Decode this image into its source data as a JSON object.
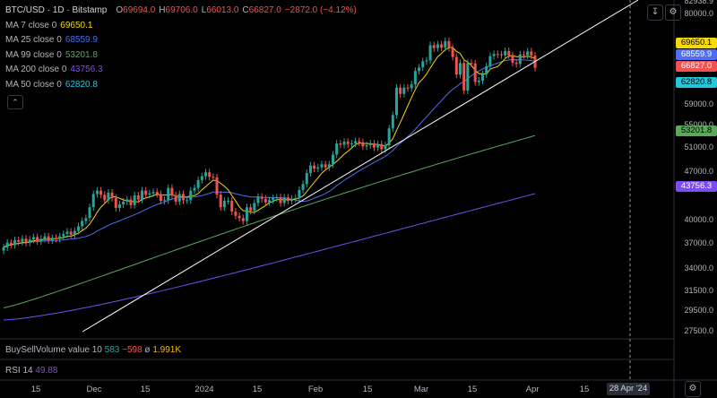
{
  "header": {
    "symbol": "BTC/USD · 1D · Bitstamp",
    "open_label": "O",
    "open": "69694.0",
    "high_label": "H",
    "high": "69706.0",
    "low_label": "L",
    "low": "66013.0",
    "close_label": "C",
    "close": "66827.0",
    "change": "−2872.0 (−4.12%)"
  },
  "indicators": [
    {
      "label": "MA 7 close 0",
      "value": "69650.1",
      "color": "#f5d90a"
    },
    {
      "label": "MA 25 close 0",
      "value": "68559.9",
      "color": "#4f6ef2"
    },
    {
      "label": "MA 99 close 0",
      "value": "53201.8",
      "color": "#5aa85a"
    },
    {
      "label": "MA 200 close 0",
      "value": "43756.3",
      "color": "#7b4cf0"
    },
    {
      "label": "MA 50 close 0",
      "value": "62820.8",
      "color": "#26c6da"
    }
  ],
  "collapse_icon": "chevron-up-icon",
  "price_axis": {
    "top_clipped": "82938.9",
    "ticks": [
      "80000.0",
      "59000.0",
      "55000.0",
      "51000.0",
      "47000.0",
      "40000.0",
      "37000.0",
      "34000.0",
      "31500.0",
      "29500.0",
      "27500.0"
    ],
    "price_tags": [
      {
        "value": "69650.1",
        "bg": "#f5d90a",
        "fg": "#000000"
      },
      {
        "value": "68559.9",
        "bg": "#4f6ef2",
        "fg": "#ffffff"
      },
      {
        "value": "66827.0",
        "bg": "#ef5350",
        "fg": "#ffffff"
      },
      {
        "value": "62820.8",
        "bg": "#26c6da",
        "fg": "#000000"
      },
      {
        "value": "53201.8",
        "bg": "#5aa85a",
        "fg": "#000000"
      },
      {
        "value": "43756.3",
        "bg": "#7b4cf0",
        "fg": "#ffffff"
      }
    ]
  },
  "time_axis": {
    "labels": [
      "15",
      "Dec",
      "15",
      "2024",
      "15",
      "Feb",
      "15",
      "Mar",
      "15",
      "Apr",
      "15"
    ],
    "cursor_date": "28 Apr '24"
  },
  "buysell_pane": {
    "label": "BuySellVolume value 10",
    "buy": "583",
    "sell": "−598",
    "symbol": "ø",
    "total": "1.991K"
  },
  "rsi_pane": {
    "label": "RSI 14",
    "value": "49.88"
  },
  "toolbar": {
    "download_icon": "download-icon",
    "settings_icon": "gear-icon"
  },
  "colors": {
    "up": "#26a69a",
    "down": "#ef5350",
    "trendline": "#ffffff"
  },
  "chart_data": {
    "type": "candlestick",
    "title": "BTC/USD · 1D · Bitstamp",
    "xlabel": "",
    "ylabel": "",
    "ylim": [
      27500,
      82938.9
    ],
    "x_range": [
      "2023-11-08",
      "2024-04-28"
    ],
    "candles_close": [
      36500,
      37100,
      36800,
      37400,
      37200,
      37600,
      37100,
      37500,
      37800,
      37300,
      37600,
      37900,
      37400,
      37700,
      37600,
      37900,
      38200,
      38500,
      38100,
      38600,
      39200,
      39900,
      40300,
      41800,
      43700,
      44200,
      43600,
      42800,
      43900,
      43100,
      41700,
      42200,
      42600,
      42900,
      42100,
      43500,
      42900,
      44200,
      43600,
      43800,
      44000,
      43700,
      42700,
      42800,
      44600,
      43500,
      42600,
      43700,
      42800,
      42800,
      44200,
      44600,
      45800,
      46400,
      47000,
      46300,
      46200,
      43600,
      41800,
      42700,
      42700,
      41200,
      40600,
      40300,
      39900,
      41800,
      41300,
      42400,
      43300,
      43000,
      42500,
      42800,
      43100,
      43200,
      42400,
      43200,
      42700,
      43000,
      43100,
      44300,
      45200,
      46900,
      48100,
      47600,
      47800,
      48300,
      47800,
      48300,
      49900,
      51800,
      51600,
      52100,
      51700,
      51800,
      52200,
      52000,
      51300,
      51500,
      51800,
      51100,
      51700,
      50800,
      51500,
      54500,
      57000,
      62500,
      61200,
      62500,
      62400,
      63200,
      66100,
      66900,
      68300,
      68500,
      72100,
      71400,
      72300,
      71500,
      73100,
      71400,
      69300,
      65300,
      67900,
      61900,
      67900,
      67800,
      63700,
      64000,
      65400,
      67200,
      69500,
      70000,
      69900,
      69700,
      70700,
      69700,
      68000,
      67700,
      69900,
      69700,
      70600,
      69650,
      66827
    ],
    "ma7_last": 69650.1,
    "ma25_last": 68559.9,
    "ma99_last": 53201.8,
    "ma200_last": 43756.3,
    "ma50_last": 62820.8
  }
}
